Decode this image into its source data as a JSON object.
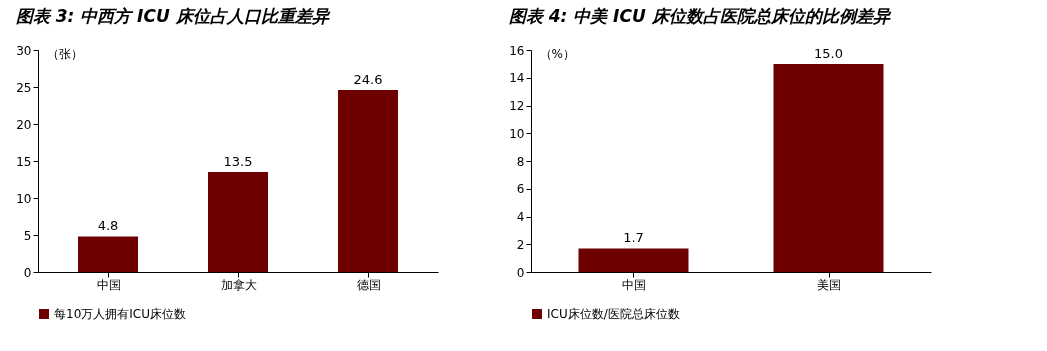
{
  "chart_data": [
    {
      "type": "bar",
      "title": "图表 3:  中西方 ICU 床位占人口比重差异",
      "ylabel": "（张）",
      "categories": [
        "中国",
        "加拿大",
        "德国"
      ],
      "series": [
        {
          "name": "每10万人拥有ICU床位数",
          "color": "#6e0000",
          "values": [
            4.8,
            13.5,
            24.6
          ]
        }
      ],
      "ylim": [
        0,
        30
      ],
      "yticks": [
        0,
        5,
        10,
        15,
        20,
        25,
        30
      ],
      "grid": false,
      "legend": "bottom",
      "data_labels": true
    },
    {
      "type": "bar",
      "title": "图表 4:  中美 ICU 床位数占医院总床位的比例差异",
      "ylabel": "（%）",
      "categories": [
        "中国",
        "美国"
      ],
      "series": [
        {
          "name": "ICU床位数/医院总床位数",
          "color": "#6e0000",
          "values": [
            1.7,
            15.0
          ],
          "value_labels": [
            "1.7",
            "15.0"
          ]
        }
      ],
      "ylim": [
        0,
        16
      ],
      "yticks": [
        0,
        2,
        4,
        6,
        8,
        10,
        12,
        14,
        16
      ],
      "grid": false,
      "legend": "bottom"
    }
  ]
}
